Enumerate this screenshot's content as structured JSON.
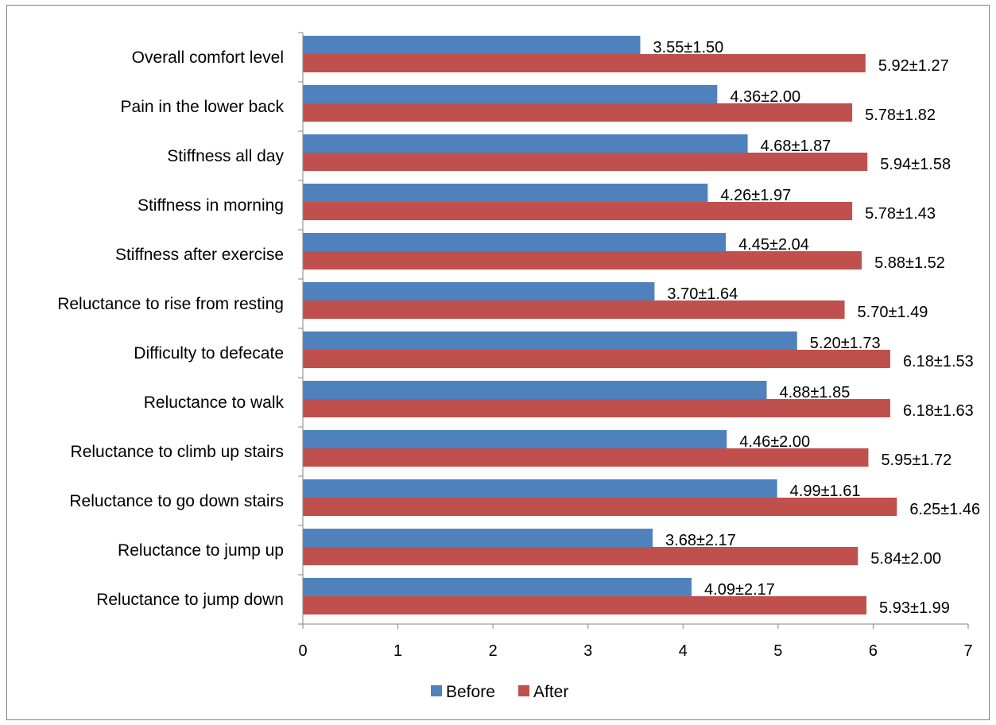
{
  "chart_data": {
    "type": "bar",
    "orientation": "horizontal",
    "categories": [
      "Overall comfort level",
      "Pain in the lower back",
      "Stiffness all day",
      "Stiffness in morning",
      "Stiffness after exercise",
      "Reluctance to rise from resting",
      "Difficulty to defecate",
      "Reluctance to walk",
      "Reluctance to climb up stairs",
      "Reluctance to go down stairs",
      "Reluctance to jump up",
      "Reluctance to jump down"
    ],
    "series": [
      {
        "name": "Before",
        "color": "#4f81bd",
        "values": [
          3.55,
          4.36,
          4.68,
          4.26,
          4.45,
          3.7,
          5.2,
          4.88,
          4.46,
          4.99,
          3.68,
          4.09
        ],
        "labels": [
          "3.55±1.50",
          "4.36±2.00",
          "4.68±1.87",
          "4.26±1.97",
          "4.45±2.04",
          "3.70±1.64",
          "5.20±1.73",
          "4.88±1.85",
          "4.46±2.00",
          "4.99±1.61",
          "3.68±2.17",
          "4.09±2.17"
        ]
      },
      {
        "name": "After",
        "color": "#c0504d",
        "values": [
          5.92,
          5.78,
          5.94,
          5.78,
          5.88,
          5.7,
          6.18,
          6.18,
          5.95,
          6.25,
          5.84,
          5.93
        ],
        "labels": [
          "5.92±1.27",
          "5.78±1.82",
          "5.94±1.58",
          "5.78±1.43",
          "5.88±1.52",
          "5.70±1.49",
          "6.18±1.53",
          "6.18±1.63",
          "5.95±1.72",
          "6.25±1.46",
          "5.84±2.00",
          "5.93±1.99"
        ]
      }
    ],
    "xlim": [
      0,
      7
    ],
    "xticks": [
      "0",
      "1",
      "2",
      "3",
      "4",
      "5",
      "6",
      "7"
    ],
    "title": "",
    "xlabel": "",
    "ylabel": "",
    "grid": false,
    "legend_position": "bottom"
  }
}
